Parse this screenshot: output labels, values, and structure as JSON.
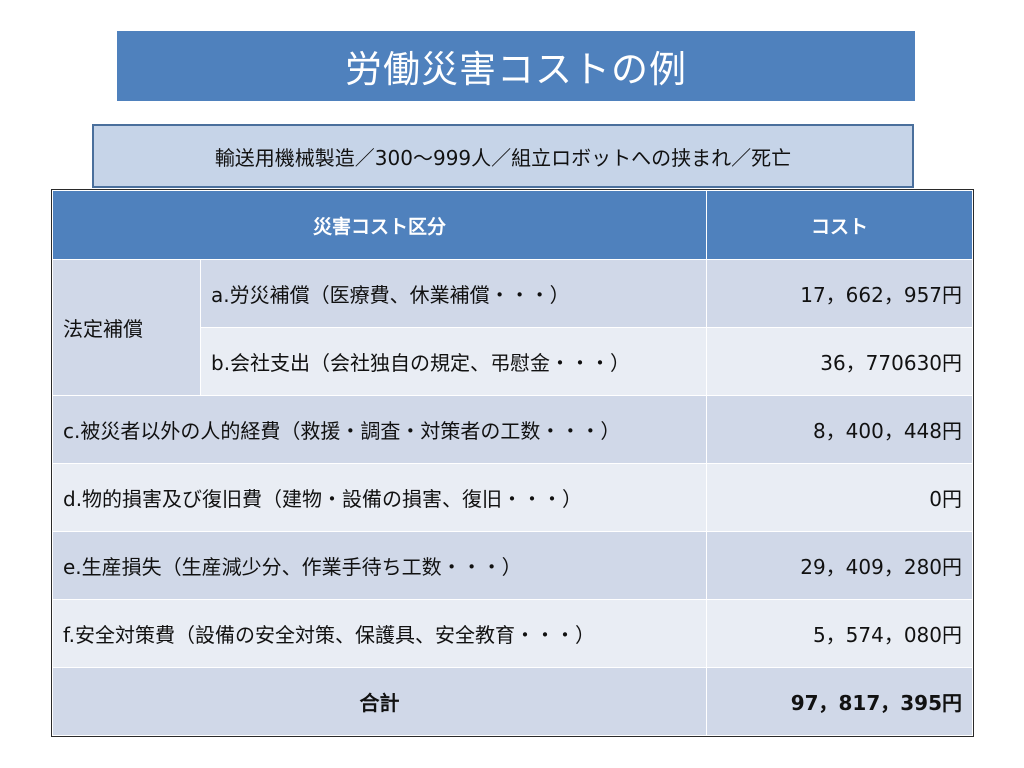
{
  "title": "労働災害コストの例",
  "subtitle": "輸送用機械製造／300～999人／組立ロボットへの挟まれ／死亡",
  "table": {
    "header_category": "災害コスト区分",
    "header_cost": "コスト",
    "legal_group": "法定補償",
    "rows": [
      {
        "label": "a.労災補償（医療費、休業補償・・・）",
        "cost": "17，662，957円"
      },
      {
        "label": "b.会社支出（会社独自の規定、弔慰金・・・）",
        "cost": "36，770630円"
      },
      {
        "label": "c.被災者以外の人的経費（救援・調査・対策者の工数・・・）",
        "cost": "8，400，448円"
      },
      {
        "label": "d.物的損害及び復旧費（建物・設備の損害、復旧・・・）",
        "cost": "0円"
      },
      {
        "label": "e.生産損失（生産減少分、作業手待ち工数・・・）",
        "cost": "29，409，280円"
      },
      {
        "label": "f.安全対策費（設備の安全対策、保護具、安全教育・・・）",
        "cost": "5，574，080円"
      }
    ],
    "total_label": "合計",
    "total_cost": "97，817，395円"
  }
}
